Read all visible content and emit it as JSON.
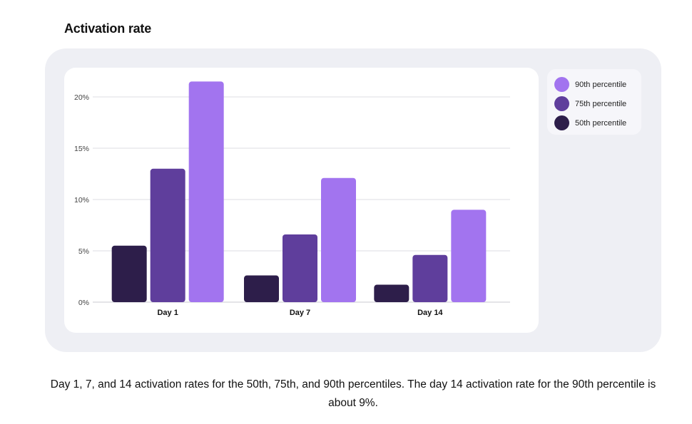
{
  "title": "Activation rate",
  "caption": "Day 1, 7, and 14 activation rates for the 50th, 75th, and 90th percentiles. The day 14 activation rate for the 90th percentile is about 9%.",
  "legend": [
    {
      "label": "90th percentile",
      "color": "#a274ef"
    },
    {
      "label": "75th percentile",
      "color": "#5f3e9c"
    },
    {
      "label": "50th percentile",
      "color": "#2d1e4a"
    }
  ],
  "chart_data": {
    "type": "bar",
    "categories": [
      "Day 1",
      "Day 7",
      "Day 14"
    ],
    "series": [
      {
        "name": "50th percentile",
        "color": "#2d1e4a",
        "values": [
          5.5,
          2.6,
          1.7
        ]
      },
      {
        "name": "75th percentile",
        "color": "#5f3e9c",
        "values": [
          13.0,
          6.6,
          4.6
        ]
      },
      {
        "name": "90th percentile",
        "color": "#a274ef",
        "values": [
          21.5,
          12.1,
          9.0
        ]
      }
    ],
    "y_ticks": [
      {
        "value": 0,
        "label": "0%"
      },
      {
        "value": 5,
        "label": "5%"
      },
      {
        "value": 10,
        "label": "10%"
      },
      {
        "value": 15,
        "label": "15%"
      },
      {
        "value": 20,
        "label": "20%"
      }
    ],
    "ylim": [
      0,
      22.5
    ],
    "grid": true,
    "legend_position": "top-right"
  }
}
